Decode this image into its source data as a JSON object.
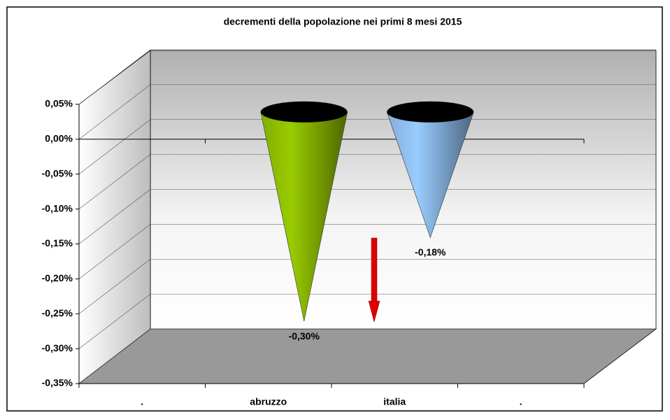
{
  "chart_data": {
    "type": "cone",
    "title": "decrementi della popolazione nei primi 8 mesi 2015",
    "categories": [
      ".",
      "abruzzo",
      "italia",
      "."
    ],
    "values": [
      null,
      -0.3,
      -0.18,
      null
    ],
    "value_labels": [
      null,
      "-0,30%",
      "-0,18%",
      null
    ],
    "colors": [
      null,
      "#99cc00",
      "#99ccff",
      null
    ],
    "ylim": [
      -0.35,
      0.05
    ],
    "yticks": [
      {
        "value": 0.05,
        "label": "0,05%"
      },
      {
        "value": 0.0,
        "label": "0,00%"
      },
      {
        "value": -0.05,
        "label": "-0,05%"
      },
      {
        "value": -0.1,
        "label": "-0,10%"
      },
      {
        "value": -0.15,
        "label": "-0,15%"
      },
      {
        "value": -0.2,
        "label": "-0,20%"
      },
      {
        "value": -0.25,
        "label": "-0,25%"
      },
      {
        "value": -0.3,
        "label": "-0,30%"
      },
      {
        "value": -0.35,
        "label": "-0,35%"
      }
    ],
    "grid": true
  }
}
